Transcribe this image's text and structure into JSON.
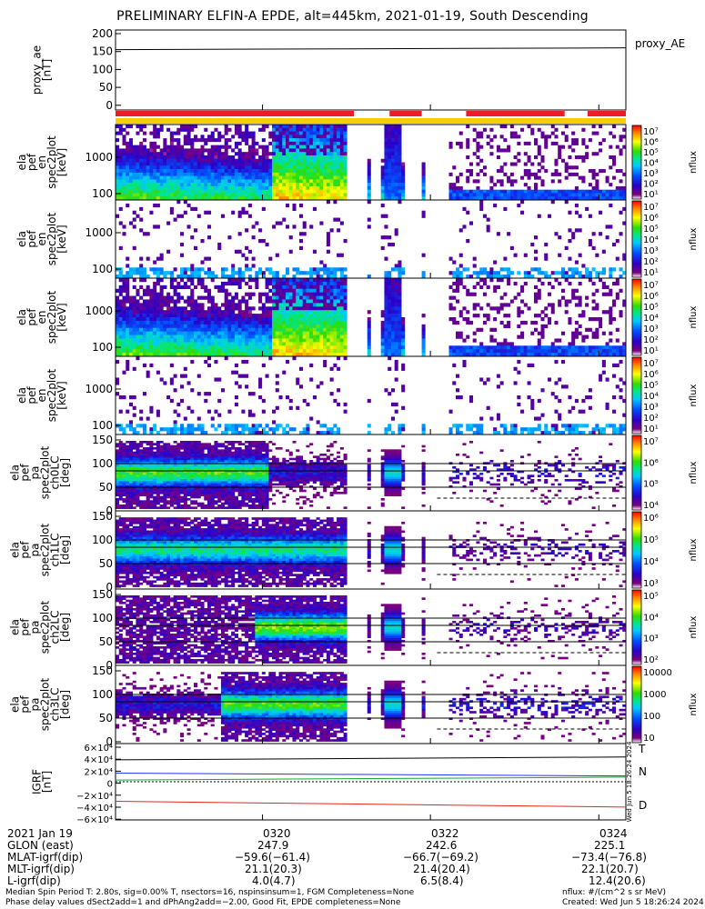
{
  "title": "PRELIMINARY ELFIN-A EPDE, alt=445km, 2021-01-19, South Descending",
  "panels": [
    {
      "id": "proxy_ae",
      "ylabel": [
        "proxy_ae",
        "[nT]"
      ],
      "ticks": [
        "200",
        "150",
        "100",
        "50",
        "0"
      ],
      "legend": "proxy_AE"
    },
    {
      "id": "pef_en",
      "ylabel": [
        "ela",
        "pef",
        "en",
        "spec2plot",
        "[keV]"
      ],
      "ticks": [
        "1000",
        "100"
      ],
      "colorbar_unit": "nflux",
      "colorbar_ticks": [
        "10⁷",
        "10⁶",
        "10⁵",
        "10⁴",
        "10³",
        "10²",
        "10¹"
      ]
    },
    {
      "id": "pef_en_para",
      "ylabel": [
        "ela",
        "pef",
        "en",
        "spec2plot",
        "[keV]"
      ],
      "ticks": [
        "1000",
        "100"
      ],
      "colorbar_unit": "nflux",
      "colorbar_ticks": [
        "10⁷",
        "10⁶",
        "10⁵",
        "10⁴",
        "10³",
        "10²",
        "10¹"
      ]
    },
    {
      "id": "pef_en_perp",
      "ylabel": [
        "ela",
        "pef",
        "en",
        "spec2plot",
        "[keV]"
      ],
      "ticks": [
        "1000",
        "100"
      ],
      "colorbar_unit": "nflux",
      "colorbar_ticks": [
        "10⁷",
        "10⁶",
        "10⁵",
        "10⁴",
        "10³",
        "10²",
        "10¹"
      ]
    },
    {
      "id": "pef_en_anti",
      "ylabel": [
        "ela",
        "pef",
        "en",
        "spec2plot",
        "[keV]"
      ],
      "ticks": [
        "1000",
        "100"
      ],
      "colorbar_unit": "nflux",
      "colorbar_ticks": [
        "10⁷",
        "10⁶",
        "10⁵",
        "10⁴",
        "10³",
        "10²",
        "10¹"
      ]
    },
    {
      "id": "ch0LC",
      "ylabel": [
        "ela",
        "pef",
        "pa",
        "spec2plot",
        "ch0LC",
        "[deg]"
      ],
      "ticks": [
        "150",
        "100",
        "50",
        "0"
      ],
      "colorbar_unit": "nflux",
      "colorbar_ticks": [
        "10⁷",
        "10⁶",
        "10⁵",
        "10⁴"
      ]
    },
    {
      "id": "ch1LC",
      "ylabel": [
        "ela",
        "pef",
        "pa",
        "spec2plot",
        "ch1LC",
        "[deg]"
      ],
      "ticks": [
        "150",
        "100",
        "50",
        "0"
      ],
      "colorbar_unit": "nflux",
      "colorbar_ticks": [
        "10⁶",
        "10⁵",
        "10⁴",
        "10³"
      ]
    },
    {
      "id": "ch2LC",
      "ylabel": [
        "ela",
        "pef",
        "pa",
        "spec2plot",
        "ch2LC",
        "[deg]"
      ],
      "ticks": [
        "150",
        "100",
        "50",
        "0"
      ],
      "colorbar_unit": "nflux",
      "colorbar_ticks": [
        "10⁵",
        "10⁴",
        "10³",
        "10²"
      ]
    },
    {
      "id": "ch3LC",
      "ylabel": [
        "ela",
        "pef",
        "pa",
        "spec2plot",
        "ch3LC",
        "[deg]"
      ],
      "ticks": [
        "150",
        "100",
        "50",
        "0"
      ],
      "colorbar_unit": "nflux",
      "colorbar_ticks": [
        "10000",
        "1000",
        "100",
        "10"
      ]
    },
    {
      "id": "igrf",
      "ylabel": [
        "IGRF",
        "[nT]"
      ],
      "ticks": [
        "6×10⁴",
        "4×10⁴",
        "2×10⁴",
        "0",
        "−2×10⁴",
        "−4×10⁴",
        "−6×10⁴"
      ],
      "legend": [
        "T",
        "N",
        "D"
      ],
      "side_text": "Wed Jun 5 18:26:24 2024"
    }
  ],
  "xaxis": {
    "row_labels": [
      "2021 Jan 19",
      "GLON (east)",
      "MLAT-igrf(dip)",
      "MLT-igrf(dip)",
      "L-igrf(dip)"
    ],
    "columns": [
      {
        "time": "0320",
        "glon": "247.9",
        "mlat": "−59.6(−61.4)",
        "mlt": "21.1(20.3)",
        "l": "4.0(4.7)"
      },
      {
        "time": "0322",
        "glon": "242.6",
        "mlat": "−66.7(−69.2)",
        "mlt": "21.4(20.4)",
        "l": "6.5(8.4)"
      },
      {
        "time": "0324",
        "glon": "225.1",
        "mlat": "−73.4(−76.8)",
        "mlt": "22.1(20.7)",
        "l": "12.4(20.6)"
      }
    ]
  },
  "footer": {
    "left1": "Median Spin Period T: 2.80s, sig=0.00% T, nsectors=16, nspinsinsum=1, FGM Completeness=None",
    "left2": "Phase delay values dSect2add=1 and dPhAng2add=−2.00, Good Fit, EPDE completeness=None",
    "right1": "nflux: #/(cm^2 s sr MeV)",
    "right2": "Created: Wed Jun  5 18:26:24 2024"
  },
  "colors": {
    "red_bar": "#ee1c24",
    "yellow_bar": "#ffcc00",
    "t_line": "#000000",
    "n_line_blue": "#1f33ff",
    "n_line_green": "#11aa33",
    "d_line": "#e8241a"
  },
  "chart_data": {
    "type": "heatmap",
    "title": "PRELIMINARY ELFIN-A EPDE, alt=445km, 2021-01-19, South Descending",
    "x_ticks": [
      "0320",
      "0322",
      "0324"
    ],
    "proxy_ae": {
      "ylim": [
        0,
        200
      ],
      "value_start": 160,
      "value_end": 165
    },
    "igrf": {
      "ylim": [
        -60000,
        60000
      ],
      "T": [
        38000,
        43000
      ],
      "N_blue": [
        15000,
        10000
      ],
      "N_green": [
        3000,
        8000
      ],
      "D": [
        -34000,
        -44000
      ]
    },
    "energy_range_keV": [
      60,
      7000
    ],
    "pitch_angle_range_deg": [
      0,
      180
    ],
    "data_segments": [
      [
        0,
        0.45
      ],
      [
        0.49,
        0.495
      ],
      [
        0.52,
        0.56
      ],
      [
        0.6,
        0.605
      ],
      [
        0.65,
        1.0
      ]
    ],
    "colorbar_unit": "nflux"
  }
}
